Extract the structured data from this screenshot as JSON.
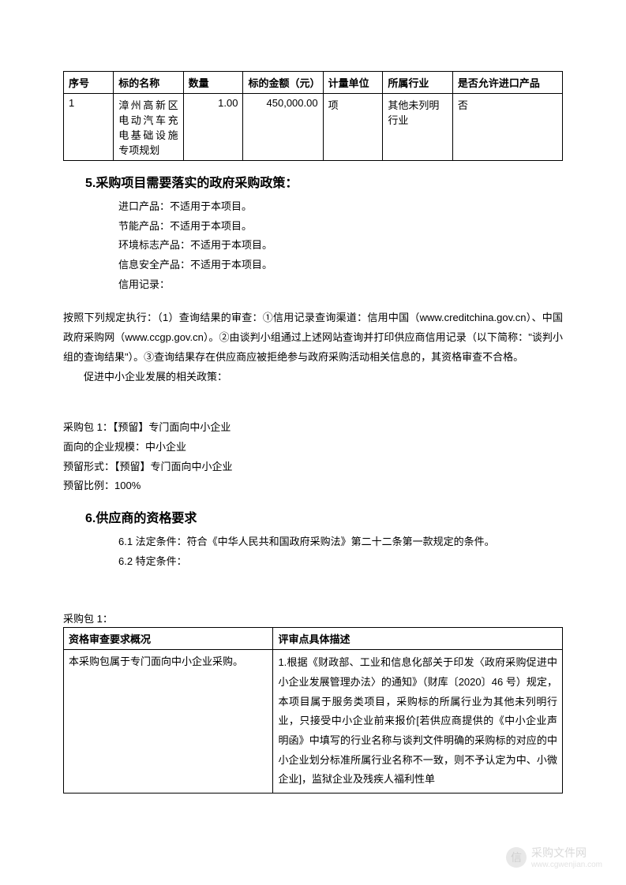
{
  "table1": {
    "columns": [
      "序号",
      "标的名称",
      "数量",
      "标的金额（元）",
      "计量单位",
      "所属行业",
      "是否允许进口产品"
    ],
    "widths": [
      "10%",
      "14%",
      "12%",
      "16%",
      "12%",
      "14%",
      "22%"
    ],
    "rows": [
      [
        "1",
        "漳州高新区电动汽车充电基础设施专项规划",
        "1.00",
        "450,000.00",
        "项",
        "其他未列明行业",
        "否"
      ]
    ]
  },
  "section5": {
    "heading": "5.采购项目需要落实的政府采购政策：",
    "policies": [
      "进口产品：不适用于本项目。",
      "节能产品：不适用于本项目。",
      "环境标志产品：不适用于本项目。",
      "信息安全产品：不适用于本项目。",
      "信用记录："
    ],
    "credit_text": "按照下列规定执行：（1）查询结果的审查：①信用记录查询渠道：信用中国（www.creditchina.gov.cn）、中国政府采购网（www.ccgp.gov.cn）。②由谈判小组通过上述网站查询并打印供应商信用记录（以下简称：\"谈判小组的查询结果\"）。③查询结果存在供应商应被拒绝参与政府采购活动相关信息的，其资格审查不合格。",
    "sme_heading": "促进中小企业发展的相关政策：",
    "sme_lines": [
      "采购包 1：【预留】专门面向中小企业",
      "面向的企业规模：中小企业",
      "预留形式：【预留】专门面向中小企业",
      "预留比例：100%"
    ]
  },
  "section6": {
    "heading": "6.供应商的资格要求",
    "items": [
      "6.1 法定条件：符合《中华人民共和国政府采购法》第二十二条第一款规定的条件。",
      "6.2 特定条件："
    ]
  },
  "table2": {
    "pkg_label": "采购包 1：",
    "columns": [
      "资格审查要求概况",
      "评审点具体描述"
    ],
    "widths": [
      "42%",
      "58%"
    ],
    "rows": [
      [
        "本采购包属于专门面向中小企业采购。",
        "1.根据《财政部、工业和信息化部关于印发〈政府采购促进中小企业发展管理办法〉的通知》（财库〔2020〕46 号）规定，本项目属于服务类项目，采购标的所属行业为其他未列明行业，只接受中小企业前来报价[若供应商提供的《中小企业声明函》中填写的行业名称与谈判文件明确的采购标的对应的中小企业划分标准所属行业名称不一致，则不予认定为中、小微企业]，监狱企业及残疾人福利性单"
      ]
    ]
  },
  "watermark": {
    "icon_text": "信",
    "main": "采购文件网",
    "url": "www.cgwenjian.com"
  }
}
